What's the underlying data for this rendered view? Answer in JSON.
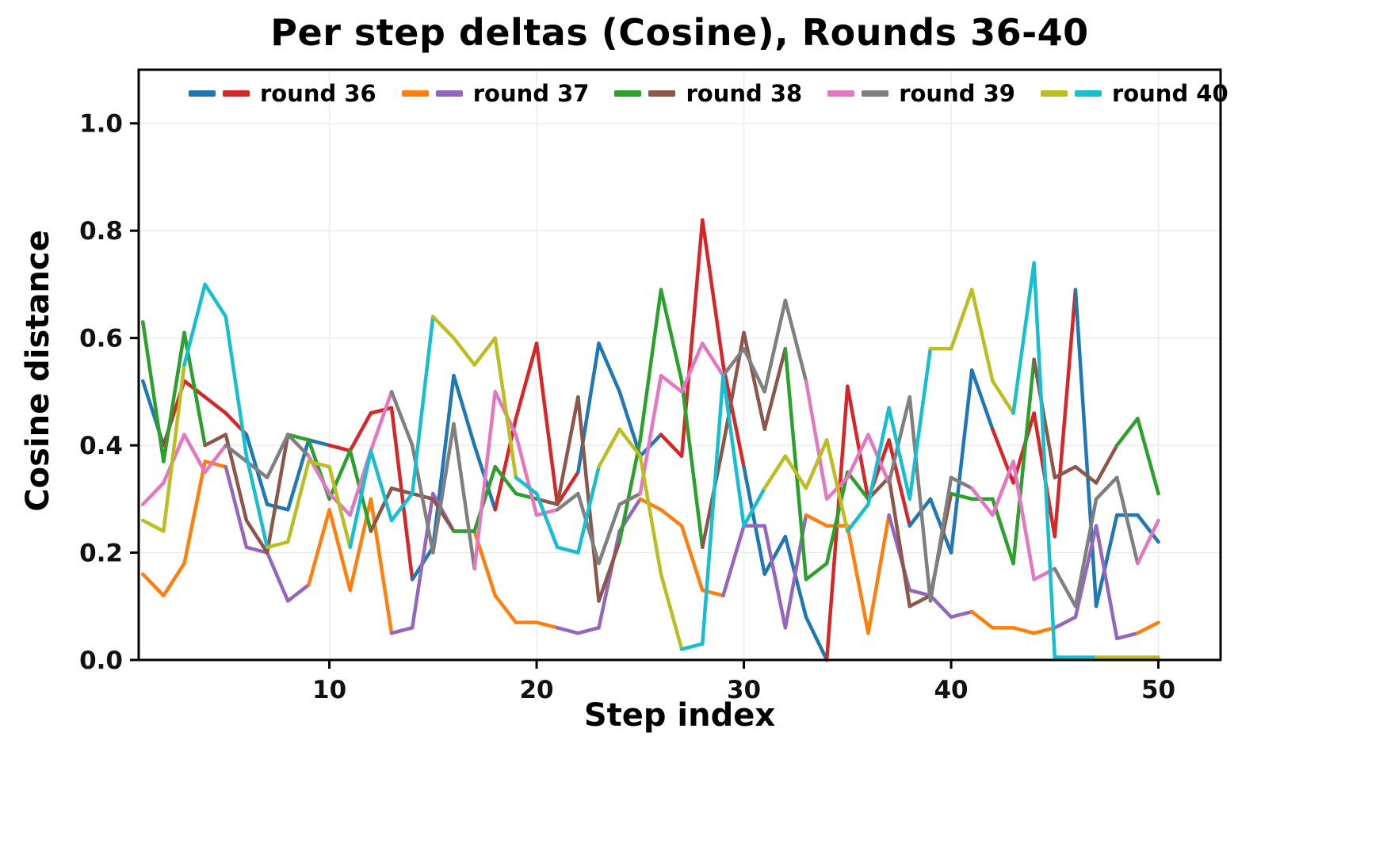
{
  "title": "Per step deltas (Cosine), Rounds 36-40",
  "chart_data": {
    "type": "line",
    "title": "Per step deltas (Cosine), Rounds 36-40",
    "xlabel": "Step index",
    "ylabel": "Cosine distance",
    "xlim": [
      0.8,
      53.0
    ],
    "ylim": [
      0.0,
      1.1
    ],
    "xticks": [
      10,
      20,
      30,
      40,
      50
    ],
    "yticks": [
      0.0,
      0.2,
      0.4,
      0.6,
      0.8,
      1.0
    ],
    "grid": true,
    "legend_position": "top-inside-horizontal",
    "x": [
      1,
      2,
      3,
      4,
      5,
      6,
      7,
      8,
      9,
      10,
      11,
      12,
      13,
      14,
      15,
      16,
      17,
      18,
      19,
      20,
      21,
      22,
      23,
      24,
      25,
      26,
      27,
      28,
      29,
      30,
      31,
      32,
      33,
      34,
      35,
      36,
      37,
      38,
      39,
      40,
      41,
      42,
      43,
      44,
      45,
      46,
      47,
      48,
      49,
      50
    ],
    "series": [
      {
        "name": "round 36",
        "colors": [
          "#1f77b4",
          "#d62728"
        ],
        "chunk_offset": 3,
        "values": [
          0.52,
          0.4,
          0.52,
          0.49,
          0.46,
          0.42,
          0.29,
          0.28,
          0.41,
          0.4,
          0.39,
          0.46,
          0.47,
          0.15,
          0.21,
          0.53,
          0.4,
          0.28,
          0.45,
          0.59,
          0.29,
          0.35,
          0.59,
          0.5,
          0.38,
          0.42,
          0.38,
          0.82,
          0.55,
          0.36,
          0.16,
          0.23,
          0.08,
          0.0,
          0.51,
          0.3,
          0.41,
          0.25,
          0.3,
          0.2,
          0.54,
          0.43,
          0.33,
          0.46,
          0.23,
          0.69,
          0.1,
          0.27,
          0.27,
          0.22
        ]
      },
      {
        "name": "round 37",
        "colors": [
          "#ff7f0e",
          "#9467bd"
        ],
        "chunk_offset": 0,
        "values": [
          0.16,
          0.12,
          0.18,
          0.37,
          0.36,
          0.21,
          0.2,
          0.11,
          0.14,
          0.28,
          0.13,
          0.3,
          0.05,
          0.06,
          0.31,
          0.24,
          0.24,
          0.12,
          0.07,
          0.07,
          0.06,
          0.05,
          0.06,
          0.24,
          0.3,
          0.28,
          0.25,
          0.13,
          0.12,
          0.25,
          0.25,
          0.06,
          0.27,
          0.25,
          0.25,
          0.05,
          0.27,
          0.13,
          0.12,
          0.08,
          0.09,
          0.06,
          0.06,
          0.05,
          0.06,
          0.08,
          0.25,
          0.04,
          0.05,
          0.07
        ]
      },
      {
        "name": "round 38",
        "colors": [
          "#2ca02c",
          "#8c564b"
        ],
        "chunk_offset": 1,
        "values": [
          0.63,
          0.37,
          0.61,
          0.4,
          0.42,
          0.26,
          0.2,
          0.42,
          0.41,
          0.3,
          0.39,
          0.24,
          0.32,
          0.31,
          0.3,
          0.24,
          0.24,
          0.36,
          0.31,
          0.3,
          0.29,
          0.49,
          0.11,
          0.22,
          0.41,
          0.69,
          0.52,
          0.21,
          0.4,
          0.61,
          0.43,
          0.58,
          0.15,
          0.18,
          0.35,
          0.3,
          0.34,
          0.1,
          0.12,
          0.31,
          0.3,
          0.3,
          0.18,
          0.56,
          0.34,
          0.36,
          0.33,
          0.4,
          0.45,
          0.31
        ]
      },
      {
        "name": "round 39",
        "colors": [
          "#e377c2",
          "#7f7f7f"
        ],
        "chunk_offset": 0,
        "values": [
          0.29,
          0.33,
          0.42,
          0.35,
          0.4,
          0.37,
          0.34,
          0.42,
          0.38,
          0.31,
          0.27,
          0.39,
          0.5,
          0.4,
          0.2,
          0.44,
          0.17,
          0.5,
          0.42,
          0.27,
          0.28,
          0.31,
          0.18,
          0.29,
          0.31,
          0.53,
          0.5,
          0.59,
          0.53,
          0.58,
          0.5,
          0.67,
          0.52,
          0.3,
          0.34,
          0.42,
          0.33,
          0.49,
          0.11,
          0.34,
          0.32,
          0.27,
          0.37,
          0.15,
          0.17,
          0.1,
          0.3,
          0.34,
          0.18,
          0.26
        ]
      },
      {
        "name": "round 40",
        "colors": [
          "#bcbd22",
          "#17becf"
        ],
        "chunk_offset": 2,
        "values": [
          0.26,
          0.24,
          0.55,
          0.7,
          0.64,
          0.38,
          0.21,
          0.22,
          0.37,
          0.36,
          0.21,
          0.39,
          0.26,
          0.31,
          0.64,
          0.6,
          0.55,
          0.6,
          0.34,
          0.31,
          0.21,
          0.2,
          0.36,
          0.43,
          0.38,
          0.16,
          0.02,
          0.03,
          0.53,
          0.25,
          0.32,
          0.38,
          0.32,
          0.41,
          0.24,
          0.29,
          0.47,
          0.3,
          0.58,
          0.58,
          0.69,
          0.52,
          0.46,
          0.74,
          0.005,
          0.005,
          0.005,
          0.005,
          0.005,
          0.005
        ]
      }
    ],
    "style": {
      "frame_color": "#000000",
      "grid_color": "#ececec",
      "background": "#ffffff",
      "line_width": 4.5
    }
  }
}
